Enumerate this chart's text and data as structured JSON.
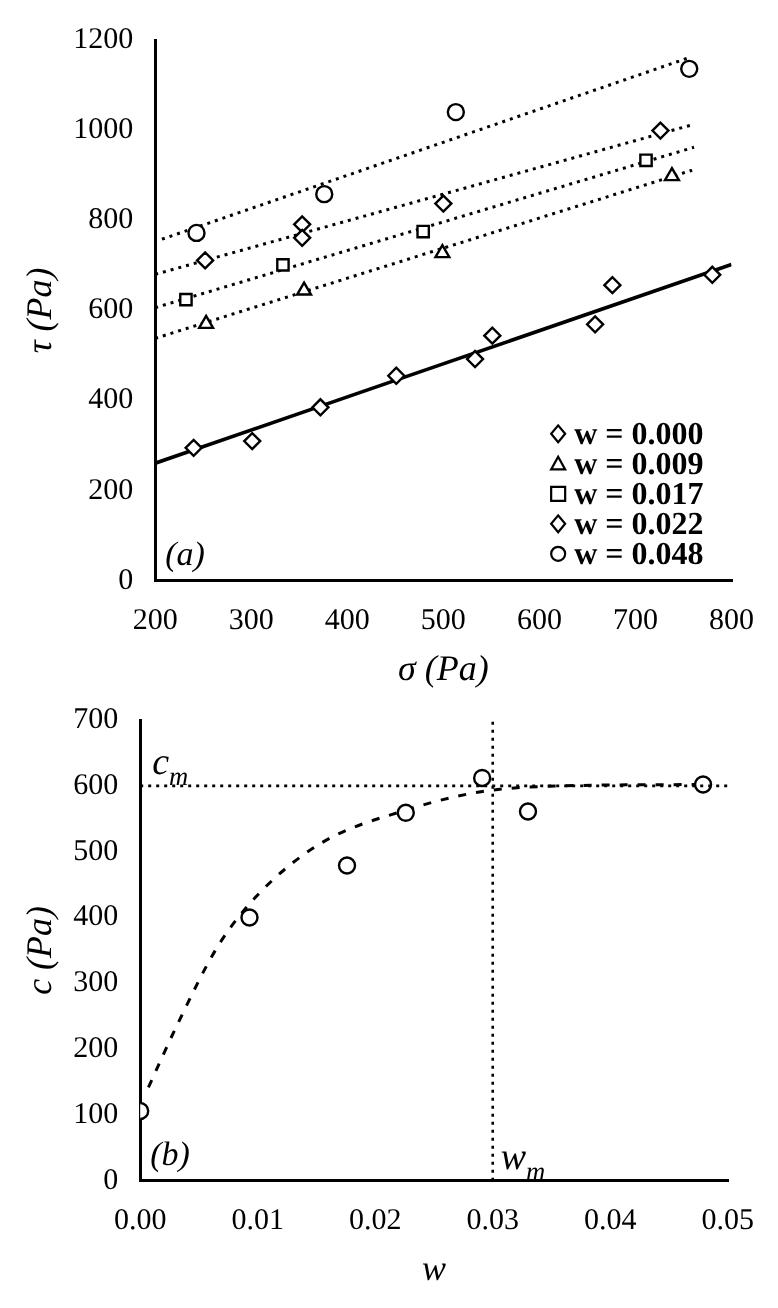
{
  "chart_data": [
    {
      "type": "scatter",
      "xlabel": "σ (Pa)",
      "ylabel": "τ (Pa)",
      "xlim": [
        200,
        800
      ],
      "xticks": [
        200,
        300,
        400,
        500,
        600,
        700,
        800
      ],
      "ylim": [
        0,
        1200
      ],
      "yticks": [
        0,
        200,
        400,
        600,
        800,
        1000,
        1200
      ],
      "grid": false,
      "legend": "bottom right",
      "annotations": [
        "(a)"
      ],
      "series": [
        {
          "name": "w = 0.000",
          "color": "#000000",
          "marker": "diamond",
          "x": [
            240,
            301,
            372,
            451,
            533,
            551,
            658,
            676,
            780
          ],
          "values": [
            295,
            310,
            385,
            455,
            492,
            544,
            569,
            656,
            679
          ]
        },
        {
          "name": "w = 0.009",
          "color": "#000000",
          "marker": "triangle",
          "x": [
            253,
            355,
            499,
            738
          ],
          "values": [
            570,
            644,
            727,
            898
          ]
        },
        {
          "name": "w = 0.017",
          "color": "#000000",
          "marker": "square",
          "x": [
            232,
            333,
            479,
            711
          ],
          "values": [
            624,
            701,
            775,
            933
          ]
        },
        {
          "name": "w = 0.022",
          "color": "#000000",
          "marker": "diamond",
          "x": [
            252,
            353,
            353,
            500,
            726
          ],
          "values": [
            711,
            791,
            761,
            837,
            999
          ]
        },
        {
          "name": "w = 0.048",
          "color": "#000000",
          "marker": "circle",
          "x": [
            243,
            376,
            513,
            756
          ],
          "values": [
            772,
            858,
            1040,
            1136
          ]
        },
        {
          "type": "line",
          "color": "#000000",
          "marker": "none",
          "line_style": "solid",
          "x": [
            200,
            800
          ],
          "values": [
            261,
            702
          ]
        },
        {
          "type": "line",
          "color": "#000000",
          "marker": "none",
          "line_style": "dotted",
          "x": [
            200,
            759
          ],
          "values": [
            538,
            911
          ]
        },
        {
          "type": "line",
          "color": "#000000",
          "marker": "none",
          "line_style": "dotted",
          "x": [
            200,
            761
          ],
          "values": [
            606,
            962
          ]
        },
        {
          "type": "line",
          "color": "#000000",
          "marker": "none",
          "line_style": "dotted",
          "x": [
            200,
            761
          ],
          "values": [
            680,
            1013
          ]
        },
        {
          "type": "line",
          "color": "#000000",
          "marker": "none",
          "line_style": "dotted",
          "x": [
            207,
            756
          ],
          "values": [
            758,
            1161
          ]
        }
      ]
    },
    {
      "type": "scatter",
      "xlabel": "w",
      "ylabel": "c (Pa)",
      "xlim": [
        0,
        0.05
      ],
      "xticks": [
        {
          "value": 0,
          "label": "0.00"
        },
        {
          "value": 0.01,
          "label": "0.01"
        },
        {
          "value": 0.02,
          "label": "0.02"
        },
        {
          "value": 0.03,
          "label": "0.03"
        },
        {
          "value": 0.04,
          "label": "0.04"
        },
        {
          "value": 0.05,
          "label": "0.05"
        }
      ],
      "ylim": [
        0,
        700
      ],
      "yticks": [
        0,
        100,
        200,
        300,
        400,
        500,
        600,
        700
      ],
      "grid": false,
      "annotations": [
        "(b)"
      ],
      "ref_lines": [
        {
          "axis": "y",
          "value": 600,
          "label": "c$_{m}$",
          "line_style": "dotted",
          "color": "#000000"
        },
        {
          "axis": "x",
          "value": 0.03,
          "label": "w$_{m}$",
          "line_style": "dotted",
          "color": "#000000"
        }
      ],
      "series": [
        {
          "color": "#000000",
          "marker": "circle",
          "x": [
            0,
            0.0093,
            0.0176,
            0.0226,
            0.0291,
            0.033,
            0.0479
          ],
          "values": [
            106,
            400,
            479,
            559,
            612,
            561,
            602
          ]
        },
        {
          "type": "line",
          "color": "#000000",
          "marker": "none",
          "line_style": "dashed",
          "x": [
            0.0007,
            0.0031,
            0.0066,
            0.0102,
            0.0155,
            0.0226,
            0.029,
            0.0361,
            0.048
          ],
          "values": [
            142,
            235,
            356,
            438,
            514,
            563,
            591,
            600,
            602
          ]
        }
      ]
    }
  ]
}
